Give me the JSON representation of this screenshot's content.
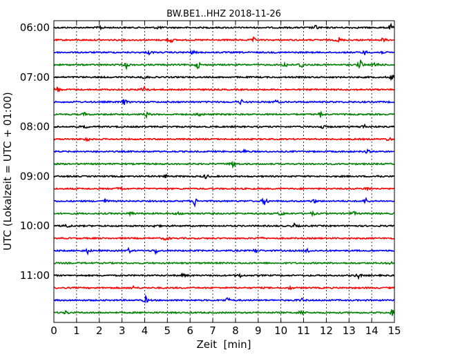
{
  "chart_data": {
    "type": "line",
    "title": "BW.BE1..HHZ 2018-11-26",
    "xlabel": "Zeit  [min]",
    "ylabel": "UTC (Lokalzeit = UTC + 01:00)",
    "xlim": [
      0,
      15
    ],
    "x_ticks": [
      "0",
      "1",
      "2",
      "3",
      "4",
      "5",
      "6",
      "7",
      "8",
      "9",
      "10",
      "11",
      "12",
      "13",
      "14",
      "15"
    ],
    "y_ticks": [
      "06:00",
      "07:00",
      "08:00",
      "09:00",
      "10:00",
      "11:00"
    ],
    "grid": "vertical dotted",
    "trace_interval_min": 15,
    "color_cycle": [
      "#000000",
      "#ff0000",
      "#0000ff",
      "#008000"
    ],
    "traces": [
      {
        "start": "06:00",
        "spikes": [
          [
            2.05,
            0.35
          ],
          [
            4.6,
            0.3
          ],
          [
            11.55,
            0.45
          ],
          [
            14.85,
            0.45
          ]
        ]
      },
      {
        "start": "06:15",
        "spikes": [
          [
            5.15,
            0.5
          ],
          [
            8.8,
            0.35
          ],
          [
            12.55,
            0.45
          ],
          [
            14.5,
            0.4
          ]
        ]
      },
      {
        "start": "06:30",
        "spikes": [
          [
            4.2,
            0.3
          ],
          [
            6.1,
            0.35
          ],
          [
            13.7,
            0.35
          ],
          [
            14.4,
            0.3
          ]
        ]
      },
      {
        "start": "06:45",
        "spikes": [
          [
            3.2,
            0.5
          ],
          [
            6.35,
            0.65
          ],
          [
            10.2,
            0.5
          ],
          [
            10.9,
            0.7
          ],
          [
            13.5,
            0.85
          ],
          [
            14.2,
            0.6
          ]
        ]
      },
      {
        "start": "07:00",
        "spikes": [
          [
            4.0,
            0.3
          ],
          [
            14.9,
            0.45
          ]
        ]
      },
      {
        "start": "07:15",
        "spikes": [
          [
            0.15,
            0.5
          ],
          [
            4.0,
            1.0
          ]
        ]
      },
      {
        "start": "07:30",
        "spikes": [
          [
            3.1,
            0.55
          ],
          [
            8.25,
            0.45
          ],
          [
            9.8,
            0.3
          ]
        ]
      },
      {
        "start": "07:45",
        "spikes": [
          [
            1.35,
            0.3
          ],
          [
            4.1,
            0.45
          ],
          [
            6.4,
            0.4
          ],
          [
            11.75,
            0.45
          ]
        ]
      },
      {
        "start": "08:00",
        "spikes": [
          [
            1.35,
            0.35
          ],
          [
            11.8,
            0.4
          ],
          [
            13.65,
            0.5
          ]
        ]
      },
      {
        "start": "08:15",
        "spikes": [
          [
            1.45,
            0.45
          ],
          [
            14.75,
            0.35
          ]
        ]
      },
      {
        "start": "08:30",
        "spikes": [
          [
            8.4,
            0.3
          ],
          [
            13.8,
            0.3
          ]
        ]
      },
      {
        "start": "08:45",
        "spikes": [
          [
            7.9,
            0.6
          ]
        ]
      },
      {
        "start": "09:00",
        "spikes": [
          [
            4.9,
            0.3
          ],
          [
            6.7,
            0.4
          ],
          [
            14.3,
            0.3
          ]
        ]
      },
      {
        "start": "09:15",
        "spikes": [
          [
            2.9,
            0.5
          ],
          [
            13.8,
            0.4
          ]
        ]
      },
      {
        "start": "09:30",
        "spikes": [
          [
            2.25,
            0.35
          ],
          [
            6.2,
            0.8
          ],
          [
            9.3,
            0.85
          ],
          [
            11.45,
            0.35
          ],
          [
            13.75,
            0.45
          ]
        ]
      },
      {
        "start": "09:45",
        "spikes": [
          [
            3.4,
            0.35
          ],
          [
            5.5,
            0.3
          ],
          [
            10.0,
            0.45
          ],
          [
            11.4,
            0.35
          ],
          [
            13.2,
            0.35
          ]
        ]
      },
      {
        "start": "10:00",
        "spikes": [
          [
            0.6,
            0.35
          ],
          [
            4.5,
            0.3
          ],
          [
            10.6,
            0.35
          ]
        ]
      },
      {
        "start": "10:15",
        "spikes": [
          [
            4.95,
            0.45
          ],
          [
            9.05,
            0.35
          ]
        ]
      },
      {
        "start": "10:30",
        "spikes": [
          [
            1.5,
            0.45
          ],
          [
            3.3,
            0.4
          ],
          [
            4.5,
            0.55
          ],
          [
            8.9,
            0.4
          ],
          [
            11.2,
            0.45
          ]
        ]
      },
      {
        "start": "10:45",
        "spikes": [
          [
            14.8,
            0.3
          ]
        ]
      },
      {
        "start": "11:00",
        "spikes": [
          [
            5.7,
            0.3
          ],
          [
            8.2,
            0.3
          ],
          [
            13.4,
            0.5
          ]
        ]
      },
      {
        "start": "11:15",
        "spikes": [
          [
            3.5,
            0.25
          ],
          [
            10.4,
            0.25
          ]
        ]
      },
      {
        "start": "11:30",
        "spikes": [
          [
            4.05,
            0.55
          ],
          [
            7.65,
            0.5
          ],
          [
            10.9,
            0.4
          ]
        ]
      },
      {
        "start": "11:45",
        "spikes": [
          [
            0.55,
            0.35
          ],
          [
            10.9,
            0.5
          ],
          [
            14.9,
            0.6
          ]
        ]
      }
    ]
  }
}
